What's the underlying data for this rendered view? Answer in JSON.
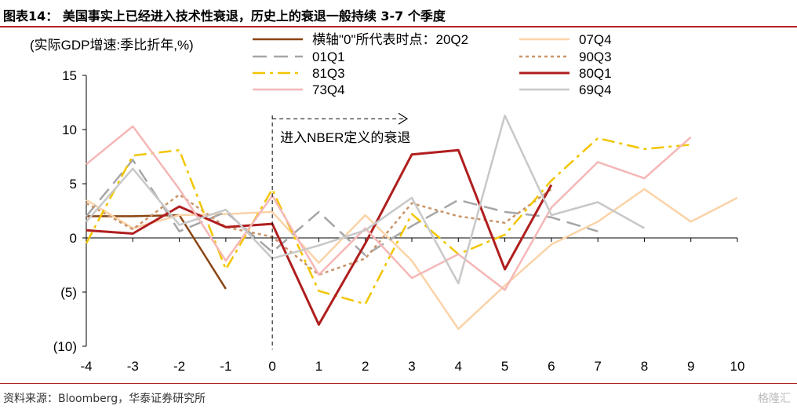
{
  "header": {
    "title": "图表14： 美国事实上已经进入技术性衰退，历史上的衰退一般持续 3-7 个季度"
  },
  "footer": {
    "source": "资料来源：Bloomberg，华泰证券研究所",
    "watermark": "格隆汇"
  },
  "chart_data": {
    "type": "line",
    "ylabel": "(实际GDP增速:季比折年,%)",
    "xlabel": "",
    "x": [
      -4,
      -3,
      -2,
      -1,
      0,
      1,
      2,
      3,
      4,
      5,
      6,
      7,
      8,
      9,
      10
    ],
    "x_tick_labels": [
      "-4",
      "-3",
      "-2",
      "-1",
      "0",
      "1",
      "2",
      "3",
      "4",
      "5",
      "6",
      "7",
      "8",
      "9",
      "10"
    ],
    "ylim": [
      -10,
      15
    ],
    "y_ticks": [
      15,
      10,
      5,
      0,
      -5,
      -10
    ],
    "y_tick_labels": [
      "15",
      "10",
      "5",
      "0",
      "(5)",
      "(10)"
    ],
    "grid": false,
    "legend_position": "top",
    "annotation": {
      "text": "进入NBER定义的衰退",
      "x_start": 0,
      "x_end": 3,
      "y": 11
    },
    "series": [
      {
        "name": "横轴\"0\"所代表时点：20Q2",
        "color": "#8B4513",
        "dash": "solid",
        "width": 2.5,
        "values": [
          2.0,
          2.0,
          2.1,
          -4.7,
          null,
          null,
          null,
          null,
          null,
          null,
          null,
          null,
          null,
          null,
          null
        ]
      },
      {
        "name": "07Q4",
        "color": "#FAD3A8",
        "dash": "solid",
        "width": 2.5,
        "values": [
          3.5,
          0.9,
          2.1,
          2.2,
          2.4,
          -2.3,
          2.1,
          -2.1,
          -8.4,
          -4.4,
          -0.6,
          1.5,
          4.5,
          1.5,
          3.7
        ]
      },
      {
        "name": "01Q1",
        "color": "#A6A6A6",
        "dash": "long-dash",
        "width": 2.5,
        "values": [
          2.0,
          7.2,
          0.6,
          2.4,
          -1.3,
          2.4,
          -1.6,
          1.1,
          3.5,
          2.4,
          1.9,
          0.6,
          null,
          null,
          null
        ]
      },
      {
        "name": "90Q3",
        "color": "#C8956B",
        "dash": "dot",
        "width": 2.5,
        "values": [
          3.2,
          0.8,
          4.0,
          1.0,
          0.1,
          -3.4,
          -1.9,
          3.2,
          2.0,
          1.4,
          4.5,
          null,
          null,
          null,
          null
        ]
      },
      {
        "name": "81Q3",
        "color": "#F2C500",
        "dash": "dash-dot",
        "width": 2.5,
        "values": [
          -0.5,
          7.6,
          8.1,
          -2.9,
          4.5,
          -4.9,
          -6.1,
          2.2,
          -1.5,
          0.3,
          5.3,
          9.2,
          8.2,
          8.6,
          null
        ]
      },
      {
        "name": "80Q1",
        "color": "#B01E1E",
        "dash": "solid",
        "width": 3,
        "values": [
          0.7,
          0.4,
          2.9,
          1.0,
          1.3,
          -8.0,
          -0.5,
          7.7,
          8.1,
          -2.9,
          4.9,
          null,
          null,
          null,
          null
        ]
      },
      {
        "name": "73Q4",
        "color": "#F5B7B7",
        "dash": "solid",
        "width": 2.5,
        "values": [
          6.8,
          10.3,
          4.5,
          -2.1,
          3.9,
          -3.4,
          0.9,
          -3.7,
          -1.5,
          -4.8,
          2.8,
          7.0,
          5.5,
          9.3,
          null
        ]
      },
      {
        "name": "69Q4",
        "color": "#C8C8C8",
        "dash": "solid",
        "width": 2.5,
        "values": [
          1.5,
          6.4,
          1.2,
          2.6,
          -1.9,
          -0.7,
          0.7,
          3.7,
          -4.2,
          11.3,
          2.1,
          3.3,
          0.9,
          null,
          null
        ]
      }
    ]
  }
}
